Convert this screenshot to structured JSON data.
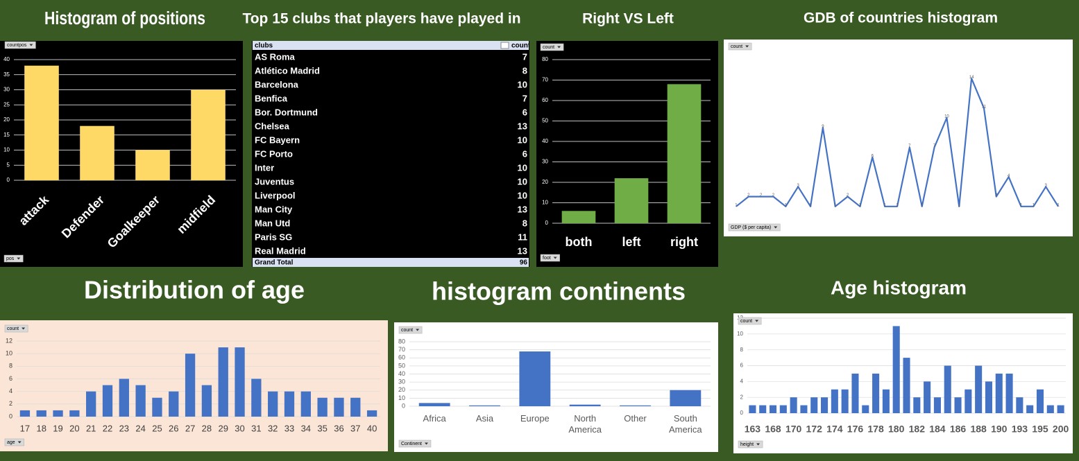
{
  "chart_data": [
    {
      "type": "bar",
      "title": "Histogram  of  positions",
      "categories": [
        "attack",
        "Defender",
        "Goalkeeper",
        "midfield"
      ],
      "values": [
        38,
        18,
        10,
        30
      ],
      "color": "#ffd966",
      "ylim": [
        0,
        40
      ],
      "yticks": [
        0,
        5,
        10,
        15,
        20,
        25,
        30,
        35,
        40
      ],
      "grid": true,
      "value_field": "countpos",
      "axis_field": "pos"
    },
    {
      "type": "bar",
      "title": "Right VS Left",
      "categories": [
        "both",
        "left",
        "right"
      ],
      "values": [
        6,
        22,
        68
      ],
      "color": "#70ad47",
      "ylim": [
        0,
        80
      ],
      "yticks": [
        0,
        10,
        20,
        30,
        40,
        50,
        60,
        70,
        80
      ],
      "grid": true,
      "value_field": "count",
      "axis_field": "foot"
    },
    {
      "type": "line",
      "title": "GDB of countries histogram",
      "categories": [
        null,
        null,
        null,
        null,
        null,
        null,
        null,
        null,
        null,
        null,
        null,
        null,
        null,
        null,
        null,
        null,
        null,
        null,
        null,
        null,
        null,
        null,
        null,
        null,
        null,
        null,
        null
      ],
      "values": [
        1,
        2,
        2,
        2,
        1,
        3,
        1,
        9,
        1,
        2,
        1,
        6,
        1,
        1,
        7,
        1,
        7,
        10,
        1,
        14,
        11,
        2,
        4,
        1,
        1,
        3,
        1
      ],
      "color": "#4472c4",
      "ylim": [
        0,
        15
      ],
      "yticks": [],
      "grid": false,
      "value_field": "count",
      "axis_field": "GDP ($ per capita)"
    },
    {
      "type": "bar",
      "title": "Distribution of age",
      "categories": [
        "17",
        "18",
        "19",
        "20",
        "21",
        "22",
        "23",
        "24",
        "25",
        "26",
        "27",
        "28",
        "29",
        "30",
        "31",
        "32",
        "33",
        "34",
        "35",
        "36",
        "37",
        "40"
      ],
      "values": [
        1,
        1,
        1,
        1,
        4,
        5,
        6,
        5,
        3,
        4,
        10,
        5,
        11,
        11,
        6,
        4,
        4,
        4,
        3,
        3,
        3,
        1
      ],
      "color": "#4472c4",
      "ylim": [
        0,
        12
      ],
      "yticks": [
        0,
        2,
        4,
        6,
        8,
        10,
        12
      ],
      "grid": true,
      "value_field": "count",
      "axis_field": "age"
    },
    {
      "type": "bar",
      "title": "histogram continents",
      "categories": [
        "Africa",
        "Asia",
        "Europe",
        "North America",
        "Other",
        "South America"
      ],
      "values": [
        4,
        1,
        68,
        2,
        1,
        20
      ],
      "color": "#4472c4",
      "ylim": [
        0,
        80
      ],
      "yticks": [
        0,
        10,
        20,
        30,
        40,
        50,
        60,
        70,
        80
      ],
      "grid": true,
      "value_field": "count",
      "axis_field": "Continent"
    },
    {
      "type": "bar",
      "title": "Age histogram",
      "categories": [
        "163",
        null,
        "168",
        null,
        "170",
        null,
        "172",
        null,
        "174",
        null,
        "176",
        null,
        "178",
        null,
        "180",
        null,
        "182",
        null,
        "184",
        null,
        "186",
        null,
        "188",
        null,
        "190",
        null,
        "193",
        null,
        "195",
        null,
        "200"
      ],
      "values": [
        1,
        1,
        1,
        1,
        2,
        1,
        2,
        2,
        3,
        3,
        5,
        1,
        5,
        3,
        11,
        7,
        2,
        4,
        2,
        6,
        2,
        3,
        6,
        4,
        5,
        5,
        2,
        1,
        3,
        1,
        1
      ],
      "color": "#4472c4",
      "ylim": [
        0,
        12
      ],
      "yticks": [
        0,
        2,
        4,
        6,
        8,
        10,
        12
      ],
      "grid": true,
      "value_field": "count",
      "axis_field": "height"
    }
  ],
  "table": {
    "title": "Top 15 clubs that players have played in",
    "columns": [
      "clubs",
      "count"
    ],
    "rows": [
      [
        "AS Roma",
        7
      ],
      [
        "Atlético Madrid",
        8
      ],
      [
        "Barcelona",
        10
      ],
      [
        "Benfica",
        7
      ],
      [
        "Bor. Dortmund",
        6
      ],
      [
        "Chelsea",
        13
      ],
      [
        "FC Bayern",
        10
      ],
      [
        "FC Porto",
        6
      ],
      [
        "Inter",
        10
      ],
      [
        "Juventus",
        10
      ],
      [
        "Liverpool",
        10
      ],
      [
        "Man City",
        13
      ],
      [
        "Man Utd",
        8
      ],
      [
        "Paris SG",
        11
      ],
      [
        "Real Madrid",
        13
      ]
    ],
    "total": [
      "Grand Total",
      96
    ]
  }
}
